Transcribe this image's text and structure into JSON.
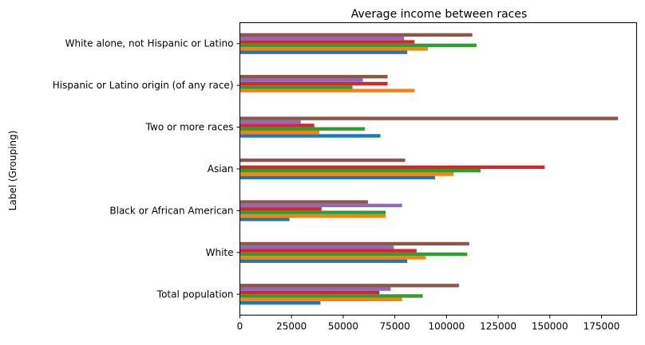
{
  "chart_data": {
    "type": "bar",
    "orientation": "horizontal",
    "title": "Average income between races",
    "xlabel": "",
    "ylabel": "Label (Grouping)",
    "xlim": [
      0,
      192000
    ],
    "x_ticks": [
      0,
      25000,
      50000,
      75000,
      100000,
      125000,
      150000,
      175000
    ],
    "x_tick_labels": [
      "0",
      "25000",
      "50000",
      "75000",
      "100000",
      "125000",
      "150000",
      "175000"
    ],
    "categories": [
      "Total population",
      "White",
      "Black or African American",
      "Asian",
      "Two or more races",
      "Hispanic or Latino origin (of any race)",
      "White alone, not Hispanic or Latino"
    ],
    "series": [
      {
        "values": [
          39000,
          81000,
          24000,
          94500,
          68000,
          0,
          81000
        ]
      },
      {
        "values": [
          78500,
          90000,
          70500,
          103500,
          38500,
          84500,
          91000
        ]
      },
      {
        "values": [
          88500,
          110000,
          70500,
          116500,
          60500,
          54500,
          114500
        ]
      },
      {
        "values": [
          67500,
          85500,
          39500,
          147500,
          36000,
          71500,
          84500
        ]
      },
      {
        "values": [
          73000,
          74500,
          78500,
          0,
          29500,
          59500,
          79500
        ]
      },
      {
        "values": [
          106000,
          111000,
          62000,
          80000,
          183000,
          71500,
          112500
        ]
      }
    ],
    "colors": [
      "#1f77b4",
      "#ff7f0e",
      "#2ca02c",
      "#d62728",
      "#9467bd",
      "#8c564b"
    ],
    "grid": false,
    "legend": false
  }
}
